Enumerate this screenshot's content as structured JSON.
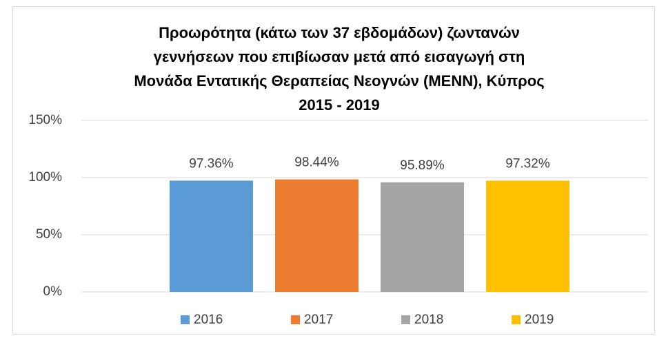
{
  "chart_data": {
    "type": "bar",
    "title": [
      "Προωρότητα (κάτω των 37 εβδομάδων) ζωντανών",
      "γεννήσεων που επιβίωσαν μετά από εισαγωγή στη",
      "Μονάδα Εντατικής Θεραπείας Νεογνών (ΜΕΝΝ), Κύπρος",
      "2015 - 2019"
    ],
    "categories": [
      null
    ],
    "series": [
      {
        "name": "2016",
        "color": "#5b9bd5",
        "values": [
          97.36
        ],
        "value_labels": [
          "97.36%"
        ]
      },
      {
        "name": "2017",
        "color": "#ed7d31",
        "values": [
          98.44
        ],
        "value_labels": [
          "98.44%"
        ]
      },
      {
        "name": "2018",
        "color": "#a5a5a5",
        "values": [
          95.89
        ],
        "value_labels": [
          "95.89%"
        ]
      },
      {
        "name": "2019",
        "color": "#ffc000",
        "values": [
          97.32
        ],
        "value_labels": [
          "97.32%"
        ]
      }
    ],
    "ylim": [
      0,
      150
    ],
    "yticks": [
      {
        "value": 0,
        "label": "0%"
      },
      {
        "value": 50,
        "label": "50%"
      },
      {
        "value": 100,
        "label": "100%"
      },
      {
        "value": 150,
        "label": "150%"
      }
    ],
    "grid": true,
    "legend": "bottom"
  }
}
